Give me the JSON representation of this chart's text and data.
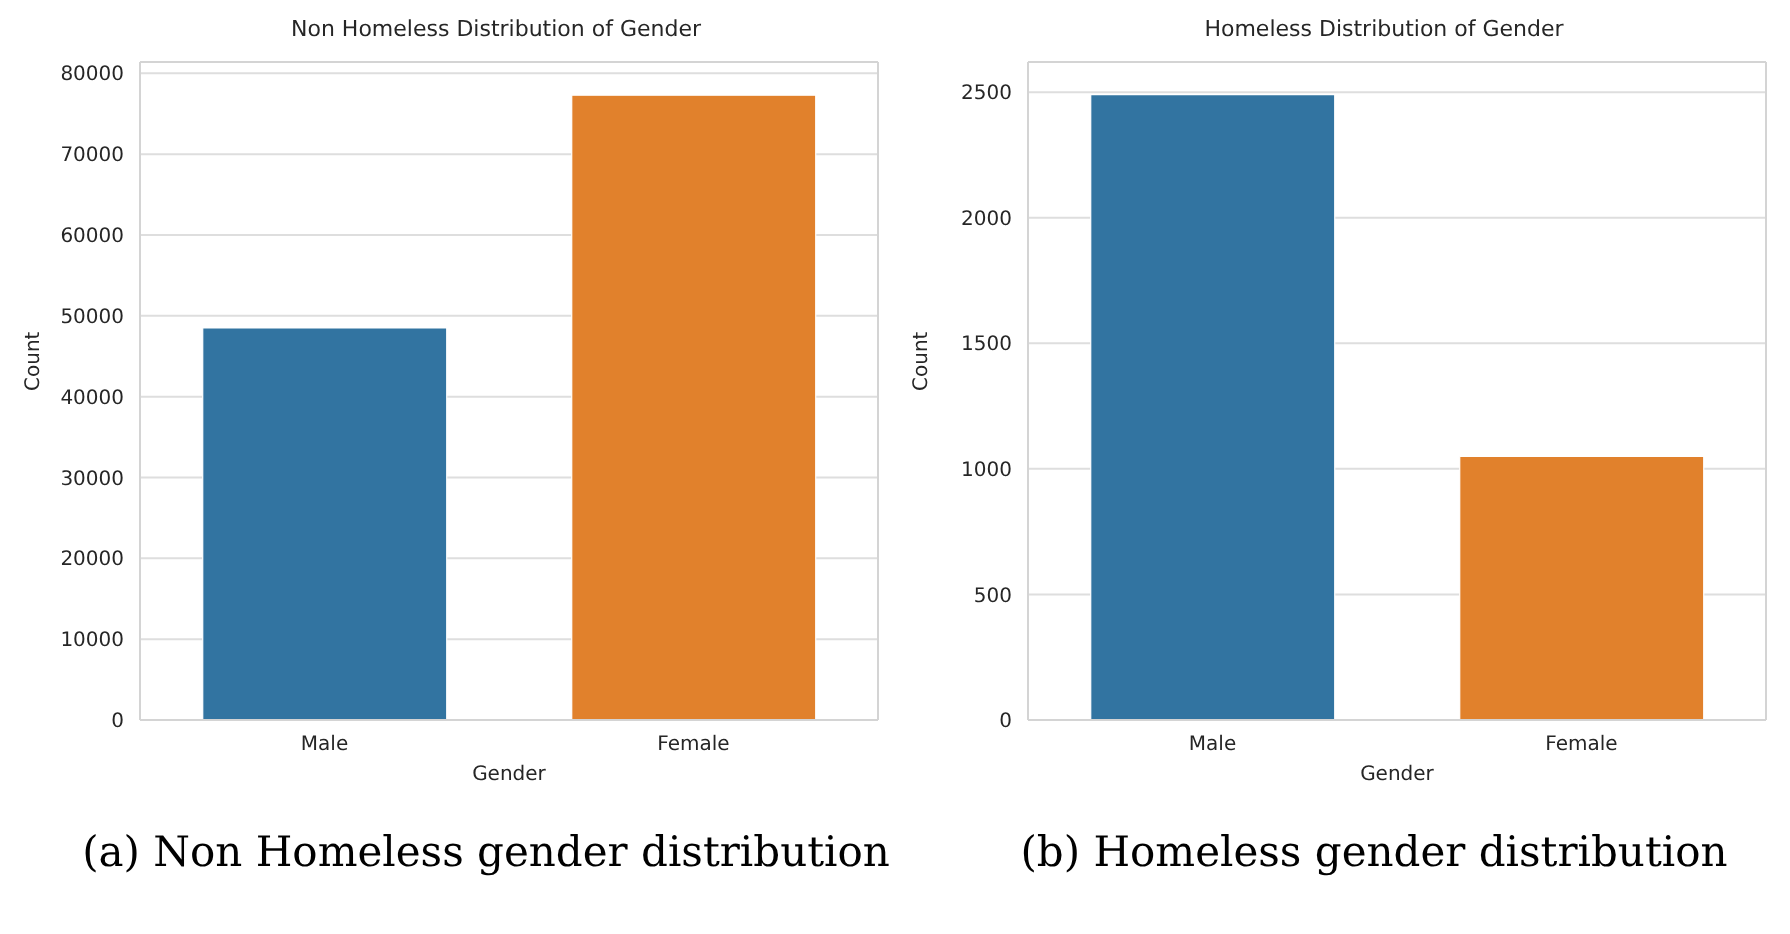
{
  "chart_data": [
    {
      "type": "bar",
      "title": "Non Homeless Distribution of Gender",
      "xlabel": "Gender",
      "ylabel": "Count",
      "categories": [
        "Male",
        "Female"
      ],
      "values": [
        48500,
        77300
      ],
      "colors": [
        "#3274a1",
        "#e1812c"
      ],
      "ylim": [
        0,
        81400
      ],
      "yticks": [
        0,
        10000,
        20000,
        30000,
        40000,
        50000,
        60000,
        70000,
        80000
      ],
      "grid": "y",
      "annotations": [
        "(a) Non Homeless gender distribution"
      ]
    },
    {
      "type": "bar",
      "title": "Homeless  Distribution of Gender",
      "xlabel": "Gender",
      "ylabel": "Count",
      "categories": [
        "Male",
        "Female"
      ],
      "values": [
        2490,
        1050
      ],
      "colors": [
        "#3274a1",
        "#e1812c"
      ],
      "ylim": [
        0,
        2620
      ],
      "yticks": [
        0,
        500,
        1000,
        1500,
        2000,
        2500
      ],
      "grid": "y",
      "annotations": [
        "(b) Homeless gender distribution"
      ]
    }
  ]
}
